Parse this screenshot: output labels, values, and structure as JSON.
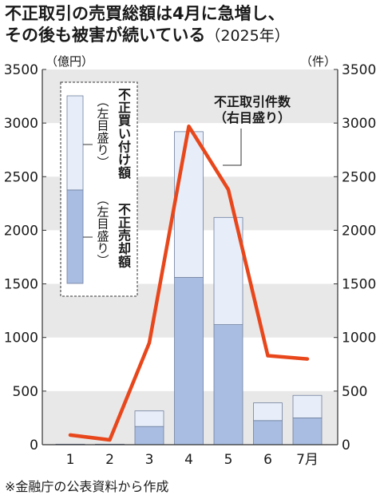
{
  "title_line1": "不正取引の売買総額は4月に急増し、",
  "title_line2_main": "その後も被害が続いている",
  "title_line2_year": "（2025年）",
  "source": "※金融庁の公表資料から作成",
  "chart_data": {
    "type": "bar+line",
    "categories": [
      "1",
      "2",
      "3",
      "4",
      "5",
      "6",
      "7月"
    ],
    "left_axis": {
      "unit": "（億円）",
      "ylim": [
        0,
        3500
      ],
      "ticks": [
        0,
        500,
        1000,
        1500,
        2000,
        2500,
        3000,
        3500
      ]
    },
    "right_axis": {
      "unit": "（件）",
      "ylim": [
        0,
        3500
      ],
      "ticks": [
        0,
        500,
        1000,
        1500,
        2000,
        2500,
        3000,
        3500
      ]
    },
    "stacked_series": [
      {
        "name": "不正売却額",
        "axis_note": "（左目盛り）",
        "color": "#a9bde2",
        "values": [
          2,
          2,
          170,
          1560,
          1120,
          225,
          250
        ]
      },
      {
        "name": "不正買い付け額",
        "axis_note": "（左目盛り）",
        "color": "#e7eef9",
        "values": [
          3,
          3,
          145,
          1360,
          1000,
          165,
          210
        ]
      }
    ],
    "line_series": {
      "name": "不正取引件数",
      "axis_note": "（右目盛り）",
      "color": "#e8471c",
      "values": [
        90,
        45,
        950,
        2970,
        2380,
        830,
        800
      ]
    },
    "grid": "horizontal bands"
  }
}
